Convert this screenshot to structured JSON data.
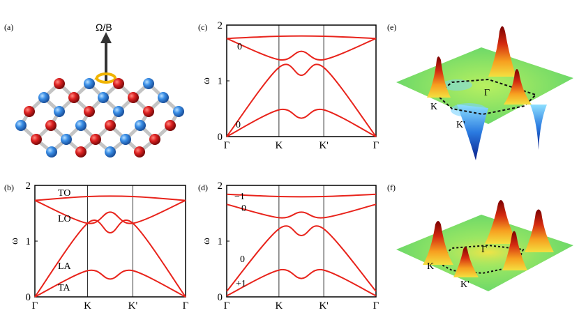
{
  "panel_labels": [
    "(a)",
    "(b)",
    "(c)",
    "(d)",
    "(e)",
    "(f)"
  ],
  "panel_a": {
    "field_label": "Ω/B"
  },
  "colors": {
    "band": "#e8231b",
    "atom_red": "#d42020",
    "atom_blue": "#3a8ee6",
    "bond": "#b8b8b8"
  },
  "panels_b": {
    "band_labels": [
      "TO",
      "LO",
      "LA",
      "TA"
    ]
  },
  "panels_c": {
    "band_labels": [
      "0",
      "0"
    ]
  },
  "panels_d": {
    "band_labels": [
      "−1",
      "0",
      "0",
      "+1"
    ]
  },
  "panel_e": {
    "point_labels": [
      "K",
      "Γ",
      "K'"
    ]
  },
  "panel_f": {
    "point_labels": [
      "K",
      "Γ",
      "K'"
    ]
  },
  "chart_data": [
    {
      "type": "line",
      "panel": "(b)",
      "ylabel": "ω",
      "x_ticks": [
        "Γ",
        "K",
        "K'",
        "Γ"
      ],
      "y_ticks": [
        "0",
        "1",
        "2"
      ],
      "ylim": [
        0,
        2
      ],
      "series": [
        {
          "name": "TO",
          "points": [
            [
              0,
              1.73
            ],
            [
              0.35,
              1.8
            ],
            [
              0.65,
              1.8
            ],
            [
              1,
              1.73
            ]
          ]
        },
        {
          "name": "LO",
          "points": [
            [
              0,
              1.73
            ],
            [
              0.35,
              1.32
            ],
            [
              0.5,
              1.52
            ],
            [
              0.65,
              1.32
            ],
            [
              1,
              1.73
            ]
          ]
        },
        {
          "name": "LA",
          "points": [
            [
              0,
              0
            ],
            [
              0.35,
              1.32
            ],
            [
              0.5,
              1.15
            ],
            [
              0.65,
              1.32
            ],
            [
              1,
              0
            ]
          ]
        },
        {
          "name": "TA",
          "points": [
            [
              0,
              0
            ],
            [
              0.35,
              0.47
            ],
            [
              0.5,
              0.32
            ],
            [
              0.65,
              0.47
            ],
            [
              1,
              0
            ]
          ]
        }
      ]
    },
    {
      "type": "line",
      "panel": "(c)",
      "ylabel": "ω",
      "x_ticks": [
        "Γ",
        "K",
        "K'",
        "Γ"
      ],
      "y_ticks": [
        "0",
        "1",
        "2"
      ],
      "ylim": [
        0,
        2
      ],
      "series": [
        {
          "points": [
            [
              0,
              1.76
            ],
            [
              0.35,
              1.8
            ],
            [
              0.65,
              1.8
            ],
            [
              1,
              1.76
            ]
          ]
        },
        {
          "points": [
            [
              0,
              1.76
            ],
            [
              0.35,
              1.38
            ],
            [
              0.5,
              1.53
            ],
            [
              0.65,
              1.38
            ],
            [
              1,
              1.76
            ]
          ]
        },
        {
          "points": [
            [
              0,
              0
            ],
            [
              0.35,
              1.24
            ],
            [
              0.5,
              1.1
            ],
            [
              0.65,
              1.24
            ],
            [
              1,
              0
            ]
          ]
        },
        {
          "points": [
            [
              0,
              0
            ],
            [
              0.35,
              0.48
            ],
            [
              0.5,
              0.33
            ],
            [
              0.65,
              0.48
            ],
            [
              1,
              0
            ]
          ]
        }
      ]
    },
    {
      "type": "line",
      "panel": "(d)",
      "ylabel": "ω",
      "x_ticks": [
        "Γ",
        "K",
        "K'",
        "Γ"
      ],
      "y_ticks": [
        "0",
        "1",
        "2"
      ],
      "ylim": [
        0,
        2
      ],
      "series": [
        {
          "points": [
            [
              0,
              1.84
            ],
            [
              0.35,
              1.8
            ],
            [
              0.65,
              1.8
            ],
            [
              1,
              1.84
            ]
          ]
        },
        {
          "points": [
            [
              0,
              1.66
            ],
            [
              0.35,
              1.42
            ],
            [
              0.5,
              1.52
            ],
            [
              0.65,
              1.42
            ],
            [
              1,
              1.66
            ]
          ]
        },
        {
          "points": [
            [
              0,
              0.1
            ],
            [
              0.35,
              1.22
            ],
            [
              0.5,
              1.1
            ],
            [
              0.65,
              1.22
            ],
            [
              1,
              0.1
            ]
          ]
        },
        {
          "points": [
            [
              0,
              0.02
            ],
            [
              0.35,
              0.48
            ],
            [
              0.5,
              0.33
            ],
            [
              0.65,
              0.48
            ],
            [
              1,
              0.02
            ]
          ]
        }
      ]
    }
  ]
}
